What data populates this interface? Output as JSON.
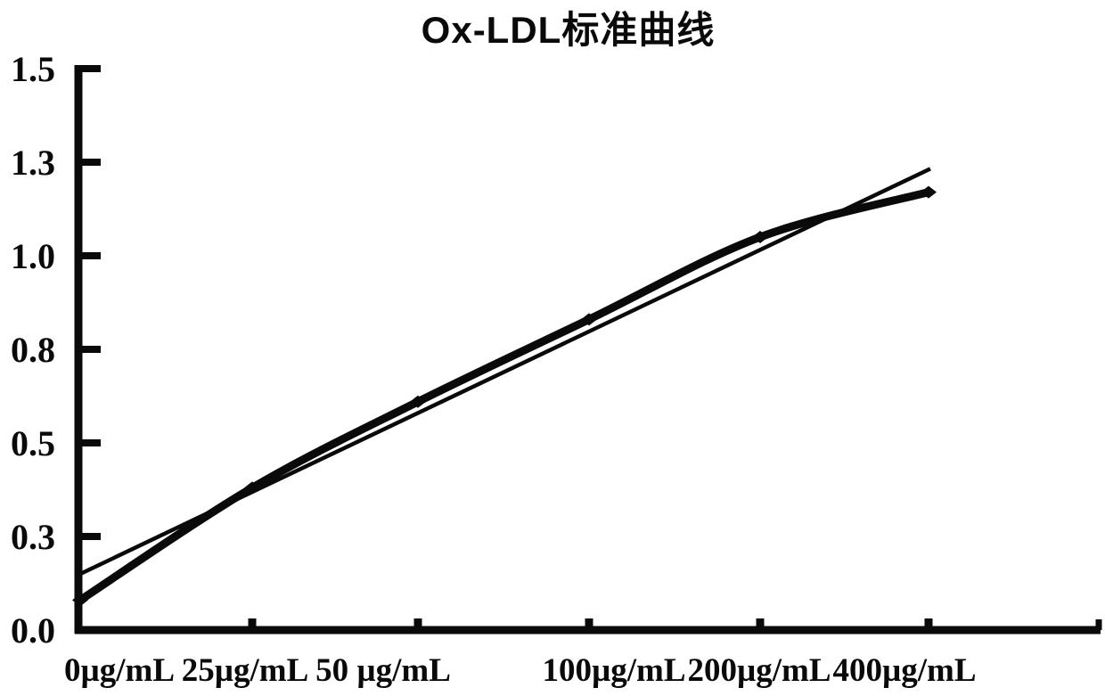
{
  "title": "Ox-LDL标准曲线",
  "colors": {
    "ink": "#0a0a0a",
    "background": "#ffffff"
  },
  "chart_data": {
    "type": "line",
    "title": "Ox-LDL标准曲线",
    "xlabel": "",
    "ylabel": "",
    "categories": [
      "0µg/mL",
      "25µg/mL",
      "50 µg/mL",
      "100µg/mL",
      "200µg/mL",
      "400µg/mL"
    ],
    "x_values_ug_per_ml": [
      0,
      25,
      50,
      100,
      200,
      400
    ],
    "ylim": [
      0.0,
      1.5
    ],
    "y_tick_labels": [
      "1.5",
      "1.3",
      "1.0",
      "0.8",
      "0.5",
      "0.3",
      "0.0"
    ],
    "y_tick_values": [
      1.5,
      1.25,
      1.0,
      0.75,
      0.5,
      0.25,
      0.0
    ],
    "grid": false,
    "legend": "none",
    "series": [
      {
        "name": "standard-curve-data",
        "line": "thick-smooth",
        "marker": "diamond",
        "values": [
          0.08,
          0.38,
          0.61,
          0.83,
          1.05,
          1.17
        ]
      },
      {
        "name": "linear-trendline",
        "line": "thin-straight",
        "marker": "none",
        "values": [
          0.15,
          0.37,
          0.58,
          0.8,
          1.02,
          1.23
        ]
      }
    ]
  }
}
